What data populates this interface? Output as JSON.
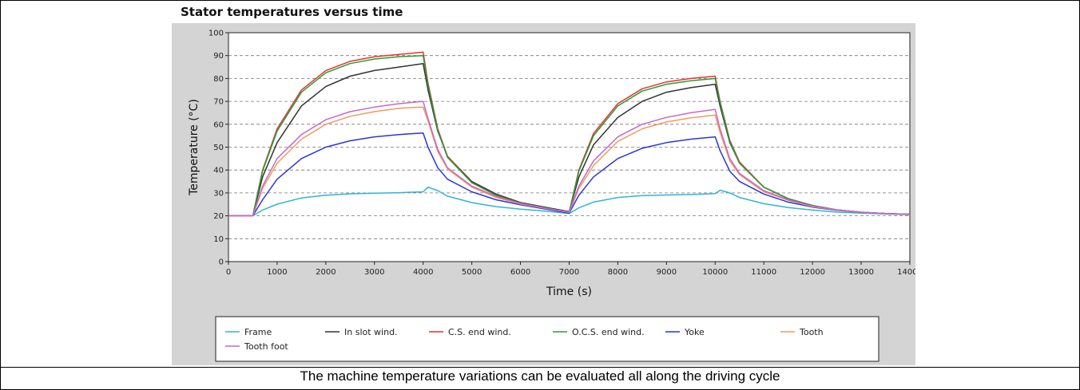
{
  "chart_data": {
    "type": "line",
    "title": "Stator temperatures versus time",
    "xlabel": "Time (s)",
    "ylabel": "Temperature (°C)",
    "xlim": [
      0,
      14000
    ],
    "ylim": [
      0,
      100
    ],
    "xticks": [
      0,
      1000,
      2000,
      3000,
      4000,
      5000,
      6000,
      7000,
      8000,
      9000,
      10000,
      11000,
      12000,
      13000,
      14000
    ],
    "yticks": [
      0,
      10,
      20,
      30,
      40,
      50,
      60,
      70,
      80,
      90,
      100
    ],
    "grid": "horizontal dashed",
    "legend_position": "bottom",
    "x": [
      0,
      500,
      700,
      1000,
      1500,
      2000,
      2500,
      3000,
      3500,
      4000,
      4100,
      4300,
      4500,
      5000,
      5500,
      6000,
      6500,
      7000,
      7200,
      7500,
      8000,
      8500,
      9000,
      9500,
      10000,
      10100,
      10300,
      10500,
      11000,
      11500,
      12000,
      12500,
      13000,
      13500,
      14000
    ],
    "series": [
      {
        "name": "Frame",
        "color": "#2eb5d4",
        "values": [
          20,
          20,
          22.5,
          25.1,
          27.8,
          29.0,
          29.6,
          29.9,
          30.1,
          30.5,
          32.5,
          31.0,
          28.6,
          25.8,
          24.0,
          22.9,
          22.1,
          21.0,
          23.5,
          26.0,
          28.0,
          28.8,
          29.1,
          29.3,
          29.7,
          31.2,
          30.0,
          28.0,
          25.3,
          23.6,
          22.5,
          21.6,
          21.2,
          20.8,
          20.5
        ]
      },
      {
        "name": "In slot wind.",
        "color": "#333333",
        "values": [
          20,
          20,
          37,
          52,
          68,
          76.5,
          81,
          83.5,
          85,
          86.5,
          75,
          57,
          46,
          35,
          29.5,
          25.8,
          23.8,
          21.8,
          37,
          51,
          63,
          70,
          74,
          76,
          77.5,
          68,
          52,
          43,
          32.5,
          27.5,
          24.5,
          22.6,
          21.6,
          21.0,
          20.7
        ]
      },
      {
        "name": "C.S. end wind.",
        "color": "#e8332a",
        "values": [
          20,
          20,
          40,
          58,
          75,
          83.5,
          87.5,
          89.5,
          90.5,
          91.5,
          78,
          58,
          46,
          34.5,
          29,
          25.5,
          23.5,
          21.5,
          40,
          56,
          69,
          75.5,
          78.5,
          80,
          81,
          70,
          53,
          43.5,
          32.5,
          27.5,
          24.5,
          22.6,
          21.5,
          21.0,
          20.7
        ]
      },
      {
        "name": "O.C.S. end wind.",
        "color": "#2a9a3a",
        "values": [
          20,
          20,
          39.5,
          57,
          74,
          82.5,
          86.5,
          88.5,
          89.5,
          90,
          77,
          57.5,
          45.5,
          34.5,
          29,
          25.5,
          23.5,
          21.5,
          39.5,
          55,
          68,
          74.5,
          77.5,
          79,
          80,
          69.5,
          52.5,
          43,
          32.5,
          27.5,
          24.5,
          22.6,
          21.5,
          21.0,
          20.7
        ]
      },
      {
        "name": "Yoke",
        "color": "#2a35d6",
        "values": [
          20,
          20,
          27,
          36,
          45,
          50,
          52.8,
          54.5,
          55.5,
          56.2,
          50,
          41,
          36,
          30.5,
          27,
          24.8,
          23,
          21.2,
          29,
          37,
          45,
          49.5,
          52,
          53.5,
          54.5,
          48.5,
          39.5,
          35,
          29.5,
          26,
          23.8,
          22.4,
          21.5,
          21.0,
          20.6
        ]
      },
      {
        "name": "Tooth",
        "color": "#f39a5a",
        "values": [
          20,
          20,
          32,
          43,
          53.5,
          60,
          63.5,
          65.5,
          67,
          67.5,
          61.5,
          48,
          40.5,
          32.5,
          28,
          25.2,
          23.3,
          21.5,
          32,
          42,
          52.5,
          58,
          61,
          62.8,
          64,
          56.5,
          44,
          38,
          30.5,
          26.8,
          24,
          22.5,
          21.5,
          21.0,
          20.6
        ]
      },
      {
        "name": "Tooth foot",
        "color": "#c867c8",
        "values": [
          20,
          20,
          33,
          45,
          55.5,
          62,
          65.5,
          67.5,
          69,
          70,
          62.5,
          49,
          41,
          33,
          28.5,
          25.4,
          23.4,
          21.6,
          33,
          44,
          54.5,
          60,
          63,
          65,
          66.5,
          58,
          45,
          38.5,
          31,
          27,
          24.2,
          22.6,
          21.6,
          21.0,
          20.6
        ]
      }
    ]
  },
  "caption": "The machine temperature variations can be evaluated all along the driving cycle"
}
